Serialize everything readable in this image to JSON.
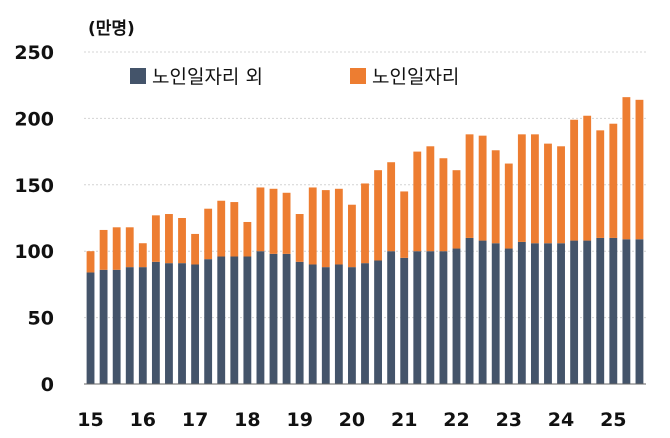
{
  "chart_data": {
    "type": "bar",
    "stacked": true,
    "unit_label": "(만명)",
    "ylim": [
      0,
      250
    ],
    "yticks": [
      0,
      50,
      100,
      150,
      200,
      250
    ],
    "year_labels": [
      "15",
      "16",
      "17",
      "18",
      "19",
      "20",
      "21",
      "22",
      "23",
      "24",
      "25"
    ],
    "legend_placement": "top-left",
    "grid": true,
    "series": [
      {
        "name": "노인일자리 외",
        "color": "#44546a",
        "values": [
          84,
          86,
          86,
          88,
          88,
          92,
          91,
          91,
          90,
          94,
          96,
          96,
          96,
          100,
          98,
          98,
          92,
          90,
          88,
          90,
          88,
          91,
          93,
          100,
          95,
          100,
          100,
          100,
          102,
          110,
          108,
          106,
          102,
          107,
          106,
          106,
          106,
          108,
          108,
          110,
          110,
          109,
          109
        ]
      },
      {
        "name": "노인일자리",
        "color": "#ed7d31",
        "values": [
          16,
          30,
          32,
          30,
          18,
          35,
          37,
          34,
          23,
          38,
          42,
          41,
          26,
          48,
          49,
          46,
          36,
          58,
          58,
          57,
          47,
          60,
          68,
          67,
          50,
          75,
          79,
          70,
          59,
          78,
          79,
          70,
          64,
          81,
          82,
          75,
          73,
          91,
          94,
          81,
          86,
          107,
          105
        ]
      }
    ]
  }
}
